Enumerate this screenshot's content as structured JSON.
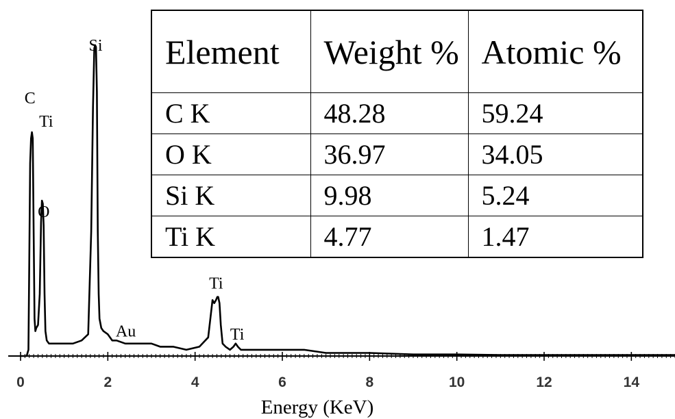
{
  "chart_data": {
    "type": "line",
    "title": "",
    "xlabel": "Energy (KeV)",
    "ylabel": "",
    "xlim": [
      0,
      15
    ],
    "ylim": [
      0,
      1
    ],
    "grid": false,
    "x_ticks": [
      0,
      2,
      4,
      6,
      8,
      10,
      12,
      14
    ],
    "series": [
      {
        "name": "",
        "x": [
          0.0,
          0.14,
          0.18,
          0.2,
          0.22,
          0.24,
          0.26,
          0.28,
          0.3,
          0.32,
          0.34,
          0.36,
          0.4,
          0.44,
          0.47,
          0.49,
          0.51,
          0.53,
          0.55,
          0.57,
          0.6,
          0.65,
          0.7,
          0.8,
          0.9,
          1.0,
          1.2,
          1.4,
          1.55,
          1.62,
          1.66,
          1.69,
          1.71,
          1.73,
          1.75,
          1.77,
          1.79,
          1.81,
          1.85,
          1.9,
          2.0,
          2.1,
          2.2,
          2.4,
          2.6,
          2.8,
          3.0,
          3.2,
          3.5,
          3.8,
          4.1,
          4.3,
          4.4,
          4.44,
          4.48,
          4.51,
          4.53,
          4.56,
          4.59,
          4.63,
          4.7,
          4.8,
          4.88,
          4.93,
          4.98,
          5.05,
          5.2,
          5.5,
          6.0,
          6.5,
          7.0,
          7.5,
          8.0,
          9.0,
          10.0,
          11.0,
          12.0,
          13.0,
          14.0,
          15.0
        ],
        "y": [
          0.0,
          0.0,
          0.02,
          0.3,
          0.62,
          0.7,
          0.72,
          0.7,
          0.4,
          0.12,
          0.08,
          0.09,
          0.1,
          0.2,
          0.43,
          0.5,
          0.49,
          0.42,
          0.2,
          0.08,
          0.05,
          0.04,
          0.04,
          0.04,
          0.04,
          0.04,
          0.04,
          0.05,
          0.07,
          0.4,
          0.8,
          0.99,
          1.0,
          0.99,
          0.85,
          0.4,
          0.2,
          0.12,
          0.09,
          0.08,
          0.07,
          0.05,
          0.05,
          0.04,
          0.04,
          0.04,
          0.04,
          0.03,
          0.03,
          0.02,
          0.03,
          0.06,
          0.18,
          0.17,
          0.18,
          0.19,
          0.19,
          0.17,
          0.1,
          0.04,
          0.03,
          0.02,
          0.03,
          0.04,
          0.03,
          0.02,
          0.02,
          0.02,
          0.02,
          0.02,
          0.01,
          0.01,
          0.01,
          0.005,
          0.005,
          0.003,
          0.003,
          0.003,
          0.003,
          0.003
        ]
      }
    ],
    "annotations": [
      {
        "text": "C",
        "x": 0.28,
        "y": 0.72
      },
      {
        "text": "Ti",
        "x": 0.3,
        "y": 0.72
      },
      {
        "text": "O",
        "x": 0.52,
        "y": 0.5
      },
      {
        "text": "Si",
        "x": 1.72,
        "y": 1.0
      },
      {
        "text": "Au",
        "x": 2.15,
        "y": 0.05
      },
      {
        "text": "Ti",
        "x": 4.51,
        "y": 0.19
      },
      {
        "text": "Ti",
        "x": 4.93,
        "y": 0.04
      }
    ]
  },
  "table": {
    "headers": [
      "Element",
      "Weight %",
      "Atomic %"
    ],
    "rows": [
      [
        "C K",
        "48.28",
        "59.24"
      ],
      [
        "O K",
        "36.97",
        "34.05"
      ],
      [
        "Si K",
        "9.98",
        "5.24"
      ],
      [
        "Ti K",
        "4.77",
        "1.47"
      ]
    ]
  }
}
